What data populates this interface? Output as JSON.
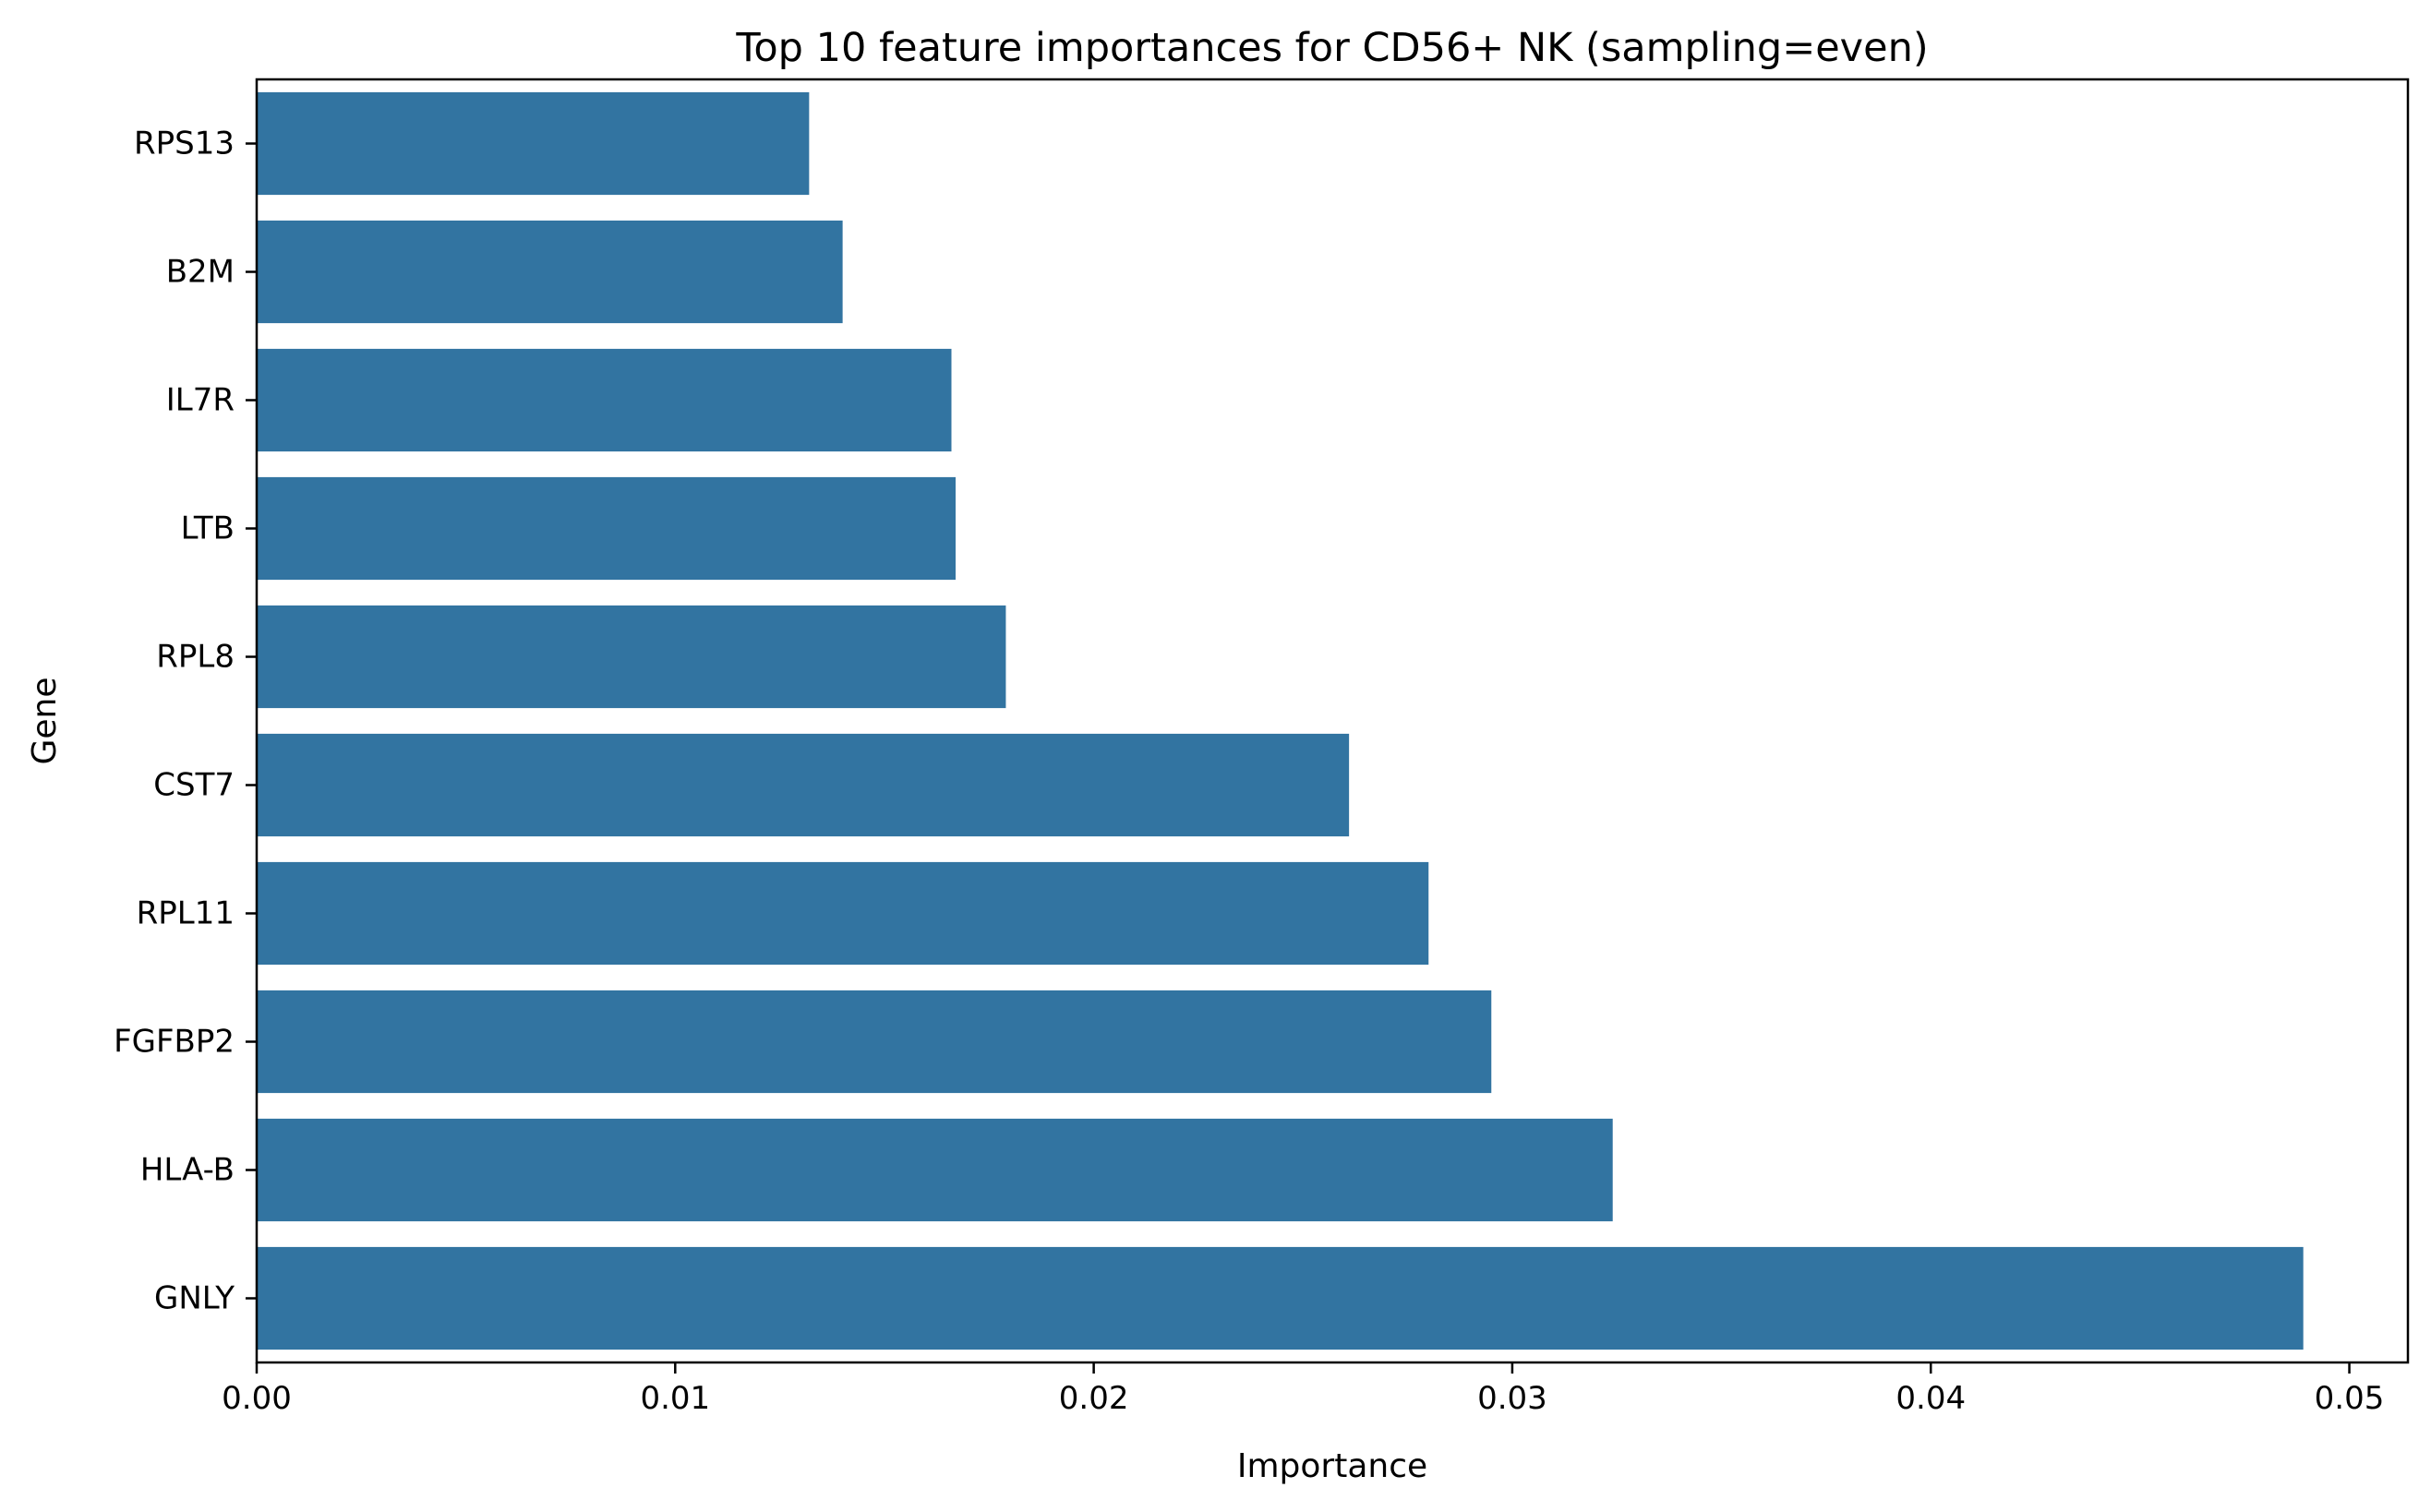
{
  "chart_data": {
    "type": "bar",
    "orientation": "horizontal",
    "title": "Top 10 feature importances for CD56+ NK (sampling=even)",
    "xlabel": "Importance",
    "ylabel": "Gene",
    "categories": [
      "RPS13",
      "B2M",
      "IL7R",
      "LTB",
      "RPL8",
      "CST7",
      "RPL11",
      "FGFBP2",
      "HLA-B",
      "GNLY"
    ],
    "values": [
      0.0132,
      0.014,
      0.0166,
      0.0167,
      0.0179,
      0.0261,
      0.028,
      0.0295,
      0.0324,
      0.0489
    ],
    "xlim": [
      0,
      0.0514
    ],
    "xticks": [
      0.0,
      0.01,
      0.02,
      0.03,
      0.04,
      0.05
    ],
    "xtick_labels": [
      "0.00",
      "0.01",
      "0.02",
      "0.03",
      "0.04",
      "0.05"
    ],
    "bar_color": "#3274a1",
    "grid": false,
    "legend": "none"
  }
}
